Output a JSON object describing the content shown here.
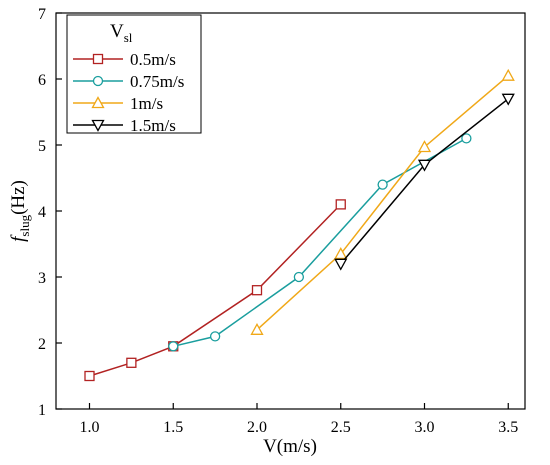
{
  "chart_data": {
    "type": "line",
    "xlabel": "V(m/s)",
    "ylabel": {
      "main": "f",
      "sub": "slug",
      "rest": "(Hz)"
    },
    "xlim": [
      0.8,
      3.6
    ],
    "ylim": [
      1,
      7
    ],
    "xticks": [
      1.0,
      1.5,
      2.0,
      2.5,
      3.0,
      3.5
    ],
    "xtick_labels": [
      "1.0",
      "1.5",
      "2.0",
      "2.5",
      "3.0",
      "3.5"
    ],
    "yticks": [
      1,
      2,
      3,
      4,
      5,
      6,
      7
    ],
    "ytick_labels": [
      "1",
      "2",
      "3",
      "4",
      "5",
      "6",
      "7"
    ],
    "grid": false,
    "legend": {
      "placement": "top-left",
      "title": {
        "main": "V",
        "sub": "sl"
      }
    },
    "series": [
      {
        "name": "0.5m/s",
        "color": "#b22222",
        "marker": "square",
        "x": [
          1.0,
          1.25,
          1.5,
          2.0,
          2.5
        ],
        "y": [
          1.5,
          1.7,
          1.95,
          2.8,
          4.1
        ]
      },
      {
        "name": "0.75m/s",
        "color": "#1a9e9e",
        "marker": "circle",
        "x": [
          1.5,
          1.75,
          2.25,
          2.75,
          3.25
        ],
        "y": [
          1.95,
          2.1,
          3.0,
          4.4,
          5.1
        ]
      },
      {
        "name": "1m/s",
        "color": "#f0a818",
        "marker": "triangle-up",
        "x": [
          2.0,
          2.5,
          3.0,
          3.5
        ],
        "y": [
          2.2,
          3.35,
          4.97,
          6.05
        ]
      },
      {
        "name": "1.5m/s",
        "color": "#000000",
        "marker": "triangle-down",
        "x": [
          2.5,
          3.0,
          3.5
        ],
        "y": [
          3.2,
          4.7,
          5.7
        ]
      }
    ]
  }
}
